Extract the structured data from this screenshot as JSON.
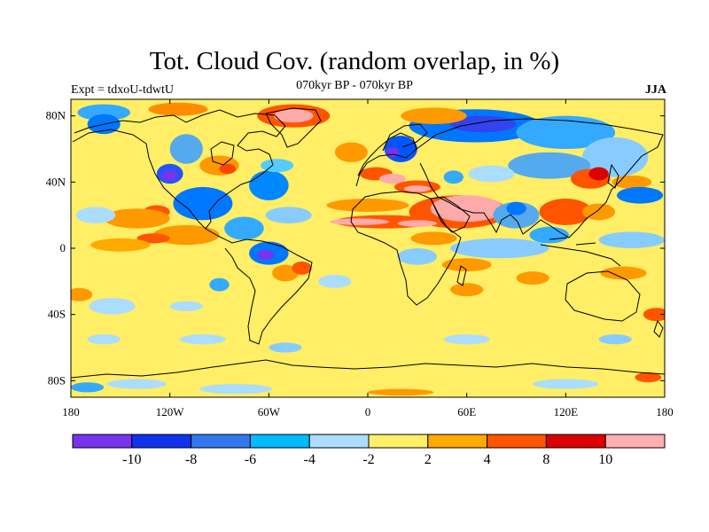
{
  "header": {
    "title": "Tot. Cloud Cov. (random overlap, in %)",
    "subtitle": "070kyr BP - 070kyr BP",
    "left_label": "Expt = tdxoU-tdwtU",
    "right_label": "JJA"
  },
  "map": {
    "projection": "cylindrical-equidistant",
    "lon_range": [
      -180,
      180
    ],
    "lat_range": [
      -90,
      90
    ],
    "lat_ticks": [
      {
        "value": 80,
        "label": "80N"
      },
      {
        "value": 40,
        "label": "40N"
      },
      {
        "value": 0,
        "label": "0"
      },
      {
        "value": -40,
        "label": "40S"
      },
      {
        "value": -80,
        "label": "80S"
      }
    ],
    "lon_ticks": [
      {
        "value": -180,
        "label": "180"
      },
      {
        "value": -120,
        "label": "120W"
      },
      {
        "value": -60,
        "label": "60W"
      },
      {
        "value": 0,
        "label": "0"
      },
      {
        "value": 60,
        "label": "60E"
      },
      {
        "value": 120,
        "label": "120E"
      },
      {
        "value": 180,
        "label": "180"
      }
    ],
    "background_color": "#ffee66",
    "anomaly_regions": [
      {
        "lon": -160,
        "lat": 82,
        "rx": 16,
        "ry": 5,
        "color": "#33aaff"
      },
      {
        "lon": -115,
        "lat": 84,
        "rx": 18,
        "ry": 4,
        "color": "#ff8c00"
      },
      {
        "lon": -45,
        "lat": 80,
        "rx": 22,
        "ry": 7,
        "color": "#ff5500"
      },
      {
        "lon": -45,
        "lat": 80,
        "rx": 12,
        "ry": 4,
        "color": "#ffaaaa"
      },
      {
        "lon": -160,
        "lat": 75,
        "rx": 10,
        "ry": 6,
        "color": "#0077ff"
      },
      {
        "lon": -110,
        "lat": 60,
        "rx": 10,
        "ry": 9,
        "color": "#55aaee"
      },
      {
        "lon": -120,
        "lat": 45,
        "rx": 8,
        "ry": 6,
        "color": "#2255ff"
      },
      {
        "lon": -120,
        "lat": 44,
        "rx": 5,
        "ry": 3,
        "color": "#7733ee"
      },
      {
        "lon": -90,
        "lat": 50,
        "rx": 12,
        "ry": 6,
        "color": "#ff9900"
      },
      {
        "lon": -85,
        "lat": 48,
        "rx": 5,
        "ry": 3,
        "color": "#ff4400"
      },
      {
        "lon": -60,
        "lat": 38,
        "rx": 12,
        "ry": 9,
        "color": "#0088ff"
      },
      {
        "lon": -55,
        "lat": 50,
        "rx": 10,
        "ry": 4,
        "color": "#55ccff"
      },
      {
        "lon": -128,
        "lat": 22,
        "rx": 8,
        "ry": 4,
        "color": "#ff5500"
      },
      {
        "lon": -140,
        "lat": 18,
        "rx": 20,
        "ry": 6,
        "color": "#ff9900"
      },
      {
        "lon": -100,
        "lat": 27,
        "rx": 18,
        "ry": 10,
        "color": "#0077ff"
      },
      {
        "lon": -165,
        "lat": 20,
        "rx": 12,
        "ry": 5,
        "color": "#aaddff"
      },
      {
        "lon": -110,
        "lat": 8,
        "rx": 20,
        "ry": 6,
        "color": "#ff9900"
      },
      {
        "lon": -130,
        "lat": 6,
        "rx": 10,
        "ry": 3,
        "color": "#ff5500"
      },
      {
        "lon": -75,
        "lat": 12,
        "rx": 12,
        "ry": 7,
        "color": "#33aaff"
      },
      {
        "lon": -48,
        "lat": 20,
        "rx": 14,
        "ry": 5,
        "color": "#88ccff"
      },
      {
        "lon": -60,
        "lat": -3,
        "rx": 12,
        "ry": 7,
        "color": "#0077ff"
      },
      {
        "lon": -62,
        "lat": -4,
        "rx": 5,
        "ry": 3,
        "color": "#7733ee"
      },
      {
        "lon": -50,
        "lat": -15,
        "rx": 8,
        "ry": 5,
        "color": "#ff9900"
      },
      {
        "lon": -40,
        "lat": -12,
        "rx": 6,
        "ry": 4,
        "color": "#ff5500"
      },
      {
        "lon": -90,
        "lat": -22,
        "rx": 6,
        "ry": 4,
        "color": "#33aaff"
      },
      {
        "lon": -175,
        "lat": -28,
        "rx": 8,
        "ry": 4,
        "color": "#ff9900"
      },
      {
        "lon": -150,
        "lat": 2,
        "rx": 18,
        "ry": 4,
        "color": "#ffaa00"
      },
      {
        "lon": -10,
        "lat": 58,
        "rx": 10,
        "ry": 6,
        "color": "#ff9900"
      },
      {
        "lon": 20,
        "lat": 60,
        "rx": 10,
        "ry": 8,
        "color": "#0055ff"
      },
      {
        "lon": 15,
        "lat": 58,
        "rx": 4,
        "ry": 3,
        "color": "#7733ee"
      },
      {
        "lon": 65,
        "lat": 74,
        "rx": 40,
        "ry": 10,
        "color": "#0077ff"
      },
      {
        "lon": 70,
        "lat": 75,
        "rx": 20,
        "ry": 5,
        "color": "#3344ee"
      },
      {
        "lon": 120,
        "lat": 70,
        "rx": 30,
        "ry": 10,
        "color": "#33aaff"
      },
      {
        "lon": 150,
        "lat": 55,
        "rx": 20,
        "ry": 12,
        "color": "#88ccff"
      },
      {
        "lon": 110,
        "lat": 50,
        "rx": 25,
        "ry": 8,
        "color": "#55aaee"
      },
      {
        "lon": 40,
        "lat": 80,
        "rx": 20,
        "ry": 5,
        "color": "#ff9900"
      },
      {
        "lon": 5,
        "lat": 45,
        "rx": 10,
        "ry": 4,
        "color": "#ff5500"
      },
      {
        "lon": 15,
        "lat": 42,
        "rx": 8,
        "ry": 3,
        "color": "#ffaaaa"
      },
      {
        "lon": 30,
        "lat": 37,
        "rx": 14,
        "ry": 4,
        "color": "#ff5500"
      },
      {
        "lon": 30,
        "lat": 36,
        "rx": 8,
        "ry": 2,
        "color": "#ffaaaa"
      },
      {
        "lon": 52,
        "lat": 43,
        "rx": 6,
        "ry": 4,
        "color": "#33aaff"
      },
      {
        "lon": 75,
        "lat": 45,
        "rx": 14,
        "ry": 5,
        "color": "#aaddff"
      },
      {
        "lon": 135,
        "lat": 42,
        "rx": 12,
        "ry": 6,
        "color": "#ff5500"
      },
      {
        "lon": 140,
        "lat": 45,
        "rx": 6,
        "ry": 4,
        "color": "#dd0000"
      },
      {
        "lon": 160,
        "lat": 40,
        "rx": 12,
        "ry": 4,
        "color": "#ff9900"
      },
      {
        "lon": 165,
        "lat": 32,
        "rx": 14,
        "ry": 5,
        "color": "#0077ff"
      },
      {
        "lon": 55,
        "lat": 22,
        "rx": 30,
        "ry": 10,
        "color": "#ff5500"
      },
      {
        "lon": 60,
        "lat": 24,
        "rx": 22,
        "ry": 8,
        "color": "#ffaaaa"
      },
      {
        "lon": 10,
        "lat": 16,
        "rx": 30,
        "ry": 4,
        "color": "#ff5500"
      },
      {
        "lon": -5,
        "lat": 16,
        "rx": 18,
        "ry": 2,
        "color": "#ffaaaa"
      },
      {
        "lon": 30,
        "lat": 15,
        "rx": 12,
        "ry": 2,
        "color": "#ffaaaa"
      },
      {
        "lon": 0,
        "lat": 26,
        "rx": 25,
        "ry": 4,
        "color": "#ff9900"
      },
      {
        "lon": 40,
        "lat": 6,
        "rx": 14,
        "ry": 4,
        "color": "#ff9900"
      },
      {
        "lon": 90,
        "lat": 20,
        "rx": 14,
        "ry": 8,
        "color": "#55aaee"
      },
      {
        "lon": 90,
        "lat": 24,
        "rx": 6,
        "ry": 4,
        "color": "#0077ff"
      },
      {
        "lon": 120,
        "lat": 22,
        "rx": 16,
        "ry": 8,
        "color": "#ff5500"
      },
      {
        "lon": 140,
        "lat": 22,
        "rx": 10,
        "ry": 5,
        "color": "#ff9900"
      },
      {
        "lon": 110,
        "lat": 8,
        "rx": 12,
        "ry": 5,
        "color": "#33aaff"
      },
      {
        "lon": 160,
        "lat": 5,
        "rx": 20,
        "ry": 5,
        "color": "#88ccff"
      },
      {
        "lon": 80,
        "lat": 0,
        "rx": 30,
        "ry": 6,
        "color": "#88ccff"
      },
      {
        "lon": 30,
        "lat": -5,
        "rx": 12,
        "ry": 5,
        "color": "#88ccff"
      },
      {
        "lon": 60,
        "lat": -10,
        "rx": 15,
        "ry": 4,
        "color": "#ff9900"
      },
      {
        "lon": 60,
        "lat": -25,
        "rx": 10,
        "ry": 4,
        "color": "#ff9900"
      },
      {
        "lon": -20,
        "lat": -20,
        "rx": 10,
        "ry": 4,
        "color": "#aaddff"
      },
      {
        "lon": 100,
        "lat": -18,
        "rx": 10,
        "ry": 4,
        "color": "#ff9900"
      },
      {
        "lon": 155,
        "lat": -15,
        "rx": 14,
        "ry": 4,
        "color": "#ff9900"
      },
      {
        "lon": 175,
        "lat": -40,
        "rx": 8,
        "ry": 4,
        "color": "#ff5500"
      },
      {
        "lon": -155,
        "lat": -35,
        "rx": 14,
        "ry": 5,
        "color": "#aaddff"
      },
      {
        "lon": -110,
        "lat": -35,
        "rx": 10,
        "ry": 3,
        "color": "#aaddff"
      },
      {
        "lon": -160,
        "lat": -55,
        "rx": 10,
        "ry": 3,
        "color": "#aaddff"
      },
      {
        "lon": -100,
        "lat": -55,
        "rx": 14,
        "ry": 3,
        "color": "#aaddff"
      },
      {
        "lon": -50,
        "lat": -60,
        "rx": 10,
        "ry": 3,
        "color": "#88ccff"
      },
      {
        "lon": 60,
        "lat": -55,
        "rx": 14,
        "ry": 3,
        "color": "#aaddff"
      },
      {
        "lon": 150,
        "lat": -55,
        "rx": 10,
        "ry": 3,
        "color": "#88ccff"
      },
      {
        "lon": -140,
        "lat": -82,
        "rx": 18,
        "ry": 3,
        "color": "#aaddff"
      },
      {
        "lon": -80,
        "lat": -85,
        "rx": 22,
        "ry": 3,
        "color": "#aaddff"
      },
      {
        "lon": 20,
        "lat": -87,
        "rx": 20,
        "ry": 2,
        "color": "#ff9900"
      },
      {
        "lon": 120,
        "lat": -82,
        "rx": 20,
        "ry": 3,
        "color": "#aaddff"
      },
      {
        "lon": 170,
        "lat": -78,
        "rx": 8,
        "ry": 3,
        "color": "#ff5500"
      },
      {
        "lon": -170,
        "lat": -84,
        "rx": 10,
        "ry": 3,
        "color": "#33aaff"
      }
    ]
  },
  "colorbar": {
    "colors": [
      "#7733ee",
      "#1133ee",
      "#3377ee",
      "#00bbff",
      "#aaddff",
      "#ffee66",
      "#ffaa00",
      "#ff5500",
      "#dd0000",
      "#ffb0b0"
    ],
    "labels": [
      "-10",
      "-8",
      "-6",
      "-4",
      "-2",
      "2",
      "4",
      "8",
      "10"
    ]
  }
}
